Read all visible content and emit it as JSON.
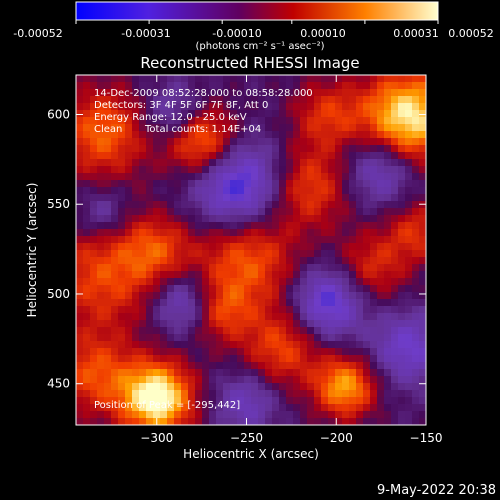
{
  "chart_data": {
    "type": "heatmap",
    "title": "Reconstructed RHESSI Image",
    "xlabel": "Heliocentric X (arcsec)",
    "ylabel": "Heliocentric Y (arcsec)",
    "xlim": [
      -345,
      -150
    ],
    "ylim": [
      427,
      622
    ],
    "x_ticks": [
      -300,
      -250,
      -200,
      -150
    ],
    "y_ticks": [
      450,
      500,
      550,
      600
    ],
    "colorbar": {
      "label": "(photons cm⁻² s⁻¹ asec⁻²)",
      "range": [
        -0.00052,
        0.00052
      ],
      "ticks": [
        "-0.00052",
        "-0.00031",
        "-0.00010",
        "0.00010",
        "0.00031",
        "0.00052"
      ]
    },
    "annotations": [
      "14-Dec-2009 08:52:28.000 to 08:58:28.000",
      "Detectors: 3F 4F 5F 6F 7F 8F, Att 0",
      "Energy Range: 12.0 - 25.0 keV",
      "Clean",
      "Total counts: 1.14E+04"
    ],
    "peak_label": "Position of Peak = [-295,442]",
    "peak": {
      "x": -295,
      "y": 442
    },
    "grid": false
  },
  "footer": {
    "timestamp": "9-May-2022 20:38"
  },
  "colors": {
    "low": "#0000ff",
    "mid_low": "#8040c0",
    "mid": "#600080",
    "mid_high": "#e02000",
    "high": "#ffff80"
  }
}
